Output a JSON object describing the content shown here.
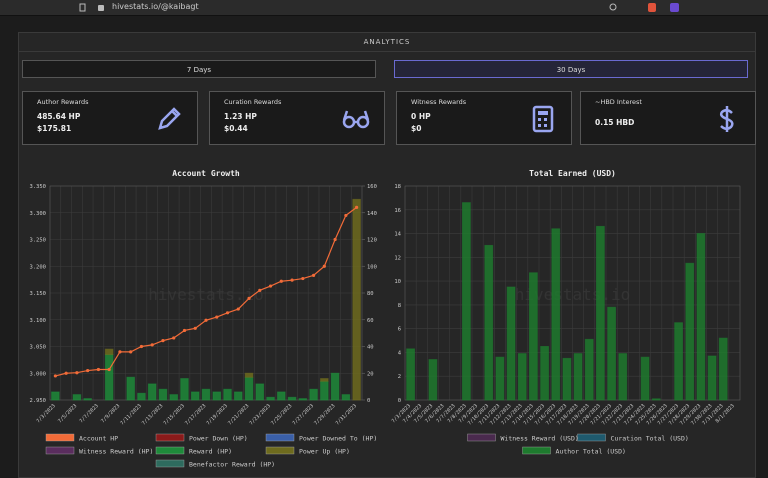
{
  "browser": {
    "url": "hivestats.io/@kaibagt"
  },
  "header": {
    "title": "ANALYTICS"
  },
  "buttons": [
    "7 Days",
    "30 Days"
  ],
  "cards": [
    {
      "title": "Author Rewards",
      "lines": [
        "485.64 HP",
        "$175.81"
      ]
    },
    {
      "title": "Curation Rewards",
      "lines": [
        "1.23 HP",
        "$0.44"
      ]
    },
    {
      "title": "Witness Rewards",
      "lines": [
        "0 HP",
        "$0"
      ]
    },
    {
      "title": "~HBD Interest",
      "lines": [
        "0.15 HBD"
      ]
    }
  ],
  "chart_data": [
    {
      "type": "bar",
      "title": "Account Growth",
      "watermark": "hivestats.io",
      "categories": [
        "7/3/2023",
        null,
        "7/5/2023",
        null,
        "7/7/2023",
        null,
        "7/9/2023",
        null,
        "7/11/2023",
        null,
        "7/13/2023",
        null,
        "7/15/2023",
        null,
        "7/17/2023",
        null,
        "7/19/2023",
        null,
        "7/21/2023",
        null,
        "7/23/2023",
        null,
        "7/25/2023",
        null,
        "7/27/2023",
        null,
        "7/29/2023",
        null,
        "7/31/2023"
      ],
      "ylim": [
        2.95,
        3.35
      ],
      "yticks": [
        {
          "value": 2.95,
          "label": "2.950"
        },
        {
          "value": 3.0,
          "label": "3.000"
        },
        {
          "value": 3.05,
          "label": "3.050"
        },
        {
          "value": 3.1,
          "label": "3.100"
        },
        {
          "value": 3.15,
          "label": "3.150"
        },
        {
          "value": 3.2,
          "label": "3.200"
        },
        {
          "value": 3.25,
          "label": "3.250"
        },
        {
          "value": 3.3,
          "label": "3.300"
        },
        {
          "value": 3.35,
          "label": "3.350"
        }
      ],
      "y2lim": [
        0,
        160
      ],
      "y2ticks": [
        0,
        20,
        40,
        60,
        80,
        100,
        120,
        140,
        160
      ],
      "grid": true,
      "series": [
        {
          "name": "Account HP",
          "color": "#f26b38",
          "type": "line",
          "axis": "y",
          "values": [
            2.995,
            3.0,
            3.001,
            3.005,
            3.007,
            3.007,
            3.04,
            3.04,
            3.05,
            3.053,
            3.061,
            3.066,
            3.08,
            3.084,
            3.099,
            3.105,
            3.113,
            3.12,
            3.14,
            3.155,
            3.163,
            3.172,
            3.174,
            3.177,
            3.183,
            3.2,
            3.25,
            3.295,
            3.31
          ]
        },
        {
          "name": "Power Down (HP)",
          "color": "#8b1a1a",
          "axis": "y2",
          "values": [
            0,
            0,
            0,
            0,
            0,
            0,
            0,
            0,
            0,
            0,
            0,
            0,
            0,
            0,
            0,
            0,
            0,
            0,
            0,
            0,
            0,
            0,
            0,
            0,
            0,
            0,
            0,
            0,
            0
          ]
        },
        {
          "name": "Power Downed To (HP)",
          "color": "#3a5fa8",
          "axis": "y2",
          "values": [
            0,
            0,
            0,
            0,
            0,
            0,
            0,
            0,
            0,
            0,
            0,
            0,
            0,
            0,
            0,
            0,
            0,
            0,
            0,
            0,
            0,
            0,
            0,
            0,
            0,
            0,
            0,
            0,
            0
          ]
        },
        {
          "name": "Witness Reward (HP)",
          "color": "#5a2d5e",
          "axis": "y2",
          "values": [
            0,
            0,
            0,
            0,
            0,
            0,
            0,
            0,
            0,
            0,
            0,
            0,
            0,
            0,
            0,
            0,
            0,
            0,
            0,
            0,
            0,
            0,
            0,
            0,
            0,
            0,
            0,
            0,
            0
          ]
        },
        {
          "name": "Reward (HP)",
          "color": "#1e8a3a",
          "axis": "y2",
          "values": [
            6,
            0,
            4,
            1,
            0,
            34,
            0,
            17,
            5,
            12,
            8,
            4,
            16,
            6,
            8,
            6,
            8,
            6,
            17,
            12,
            2,
            6,
            2,
            1,
            8,
            14,
            20,
            4,
            0
          ]
        },
        {
          "name": "Power Up (HP)",
          "color": "#6e6b1e",
          "axis": "y2",
          "values": [
            0,
            0,
            0,
            0,
            0,
            4,
            0,
            0,
            0,
            0,
            0,
            0,
            0,
            0,
            0,
            0,
            0,
            0,
            3,
            0,
            0,
            0,
            0,
            0,
            0,
            2,
            0,
            0,
            150
          ]
        },
        {
          "name": "Benefactor Reward (HP)",
          "color": "#2e6b5e",
          "axis": "y2",
          "values": [
            0,
            0,
            0,
            0,
            0,
            0,
            0,
            0,
            0,
            0,
            0,
            0,
            0,
            0,
            0,
            0,
            0,
            0,
            0,
            0,
            0,
            0,
            0,
            0,
            0,
            0,
            0,
            0,
            0
          ]
        }
      ]
    },
    {
      "type": "bar",
      "title": "Total Earned (USD)",
      "watermark": "hivestats.io",
      "categories": [
        "7/3/2023",
        "7/4/2023",
        "7/5/2023",
        "7/6/2023",
        "7/7/2023",
        "7/8/2023",
        "7/9/2023",
        "7/10/2023",
        "7/11/2023",
        "7/12/2023",
        "7/13/2023",
        "7/14/2023",
        "7/15/2023",
        "7/16/2023",
        "7/17/2023",
        "7/18/2023",
        "7/19/2023",
        "7/20/2023",
        "7/21/2023",
        "7/22/2023",
        "7/23/2023",
        "7/24/2023",
        "7/25/2023",
        "7/26/2023",
        "7/27/2023",
        "7/28/2023",
        "7/29/2023",
        "7/30/2023",
        "7/31/2023",
        "8/1/2023"
      ],
      "ylim": [
        0,
        18
      ],
      "yticks": [
        0,
        2,
        4,
        6,
        8,
        10,
        12,
        14,
        16,
        18
      ],
      "grid": true,
      "series": [
        {
          "name": "Witness Reward (USD)",
          "color": "#4a2a4e",
          "axis": "y",
          "values": [
            0,
            0,
            0,
            0,
            0,
            0,
            0,
            0,
            0,
            0,
            0,
            0,
            0,
            0,
            0,
            0,
            0,
            0,
            0,
            0,
            0,
            0,
            0,
            0,
            0,
            0,
            0,
            0,
            0,
            0
          ]
        },
        {
          "name": "Curation Total (USD)",
          "color": "#1f5a6e",
          "axis": "y",
          "values": [
            0,
            0,
            0,
            0,
            0,
            0,
            0,
            0,
            0,
            0,
            0,
            0,
            0,
            0,
            0,
            0,
            0,
            0,
            0,
            0,
            0,
            0,
            0,
            0,
            0,
            0,
            0,
            0,
            0,
            0
          ]
        },
        {
          "name": "Author Total (USD)",
          "color": "#1e7a2e",
          "axis": "y",
          "values": [
            4.3,
            0,
            3.4,
            0,
            0,
            16.6,
            0,
            13.0,
            3.6,
            9.5,
            3.9,
            10.7,
            4.5,
            14.4,
            3.5,
            3.9,
            5.1,
            14.6,
            7.8,
            3.9,
            0,
            3.6,
            0.1,
            0,
            6.5,
            11.5,
            14.0,
            3.7,
            5.2,
            0
          ]
        }
      ]
    }
  ]
}
